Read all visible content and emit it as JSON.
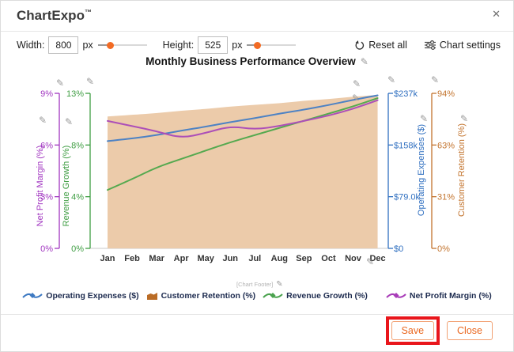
{
  "header": {
    "title": "ChartExpo",
    "tm": "™"
  },
  "icons": {
    "pencil": "✎",
    "close": "✕"
  },
  "controls": {
    "width_label": "Width:",
    "width_value": "800",
    "width_unit": "px",
    "width_slider_pct": 25,
    "height_label": "Height:",
    "height_value": "525",
    "height_unit": "px",
    "height_slider_pct": 21,
    "reset_label": "Reset all",
    "settings_label": "Chart settings"
  },
  "chart_data": {
    "type": "line",
    "title": "Monthly Business Performance Overview",
    "footer_placeholder": "[Chart Footer]",
    "categories": [
      "Jan",
      "Feb",
      "Mar",
      "Apr",
      "May",
      "Jun",
      "Jul",
      "Aug",
      "Sep",
      "Oct",
      "Nov",
      "Dec"
    ],
    "grid": false,
    "legend_position": "bottom",
    "axes": [
      {
        "id": "net_profit_margin",
        "label": "Net Profit Margin (%)",
        "color": "#A136C0",
        "side": "left-outer",
        "range": [
          0,
          9
        ],
        "tick_labels": [
          "0%",
          "3%",
          "6%",
          "9%"
        ]
      },
      {
        "id": "revenue_growth",
        "label": "Revenue Growth (%)",
        "color": "#3F9E43",
        "side": "left-inner",
        "range": [
          0,
          13
        ],
        "tick_labels": [
          "0%",
          "4%",
          "8%",
          "13%"
        ]
      },
      {
        "id": "operating_expenses",
        "label": "Operating Expenses ($)",
        "color": "#2F6FC0",
        "side": "right-inner",
        "range": [
          0,
          237
        ],
        "unit": "k$",
        "tick_labels": [
          "$0",
          "$79.0k",
          "$158k",
          "$237k"
        ]
      },
      {
        "id": "customer_retention",
        "label": "Customer Retention (%)",
        "color": "#C3742E",
        "side": "right-outer",
        "range": [
          0,
          94
        ],
        "tick_labels": [
          "0%",
          "31%",
          "63%",
          "94%"
        ]
      }
    ],
    "series": [
      {
        "name": "Customer Retention (%)",
        "type": "area",
        "axis": "customer_retention",
        "color": "#ECCBAA",
        "values": [
          80,
          81,
          82,
          83.5,
          84.5,
          86,
          87,
          88,
          89.5,
          90.5,
          92,
          93
        ]
      },
      {
        "name": "Revenue Growth (%)",
        "type": "line",
        "axis": "revenue_growth",
        "color": "#55A94F",
        "values": [
          4.9,
          5.8,
          6.8,
          7.5,
          8.2,
          8.9,
          9.5,
          10.1,
          10.7,
          11.3,
          11.9,
          12.6
        ]
      },
      {
        "name": "Operating Expenses ($)",
        "type": "line",
        "axis": "operating_expenses",
        "color": "#4D82C4",
        "values": [
          164,
          168,
          173,
          180,
          186,
          193,
          199,
          206,
          212,
          219,
          227,
          234
        ]
      },
      {
        "name": "Net Profit Margin (%)",
        "type": "line",
        "axis": "net_profit_margin",
        "color": "#AC4FB8",
        "values": [
          7.4,
          7.1,
          6.8,
          6.4,
          6.7,
          7.1,
          6.9,
          7.1,
          7.4,
          7.7,
          8.1,
          8.6
        ]
      }
    ]
  },
  "legend": {
    "items": [
      {
        "label": "Operating Expenses ($)",
        "marker": "line-diamond",
        "color": "#3D79C2"
      },
      {
        "label": "Customer Retention (%)",
        "marker": "area-swatch",
        "color": "#BA6C26"
      },
      {
        "label": "Revenue Growth (%)",
        "marker": "line-diamond",
        "color": "#4AA24E"
      },
      {
        "label": "Net Profit Margin (%)",
        "marker": "line-diamond",
        "color": "#A83CB8"
      }
    ]
  },
  "footer": {
    "save_label": "Save",
    "close_label": "Close"
  },
  "annotation": {
    "highlight_color": "#E9151B"
  }
}
